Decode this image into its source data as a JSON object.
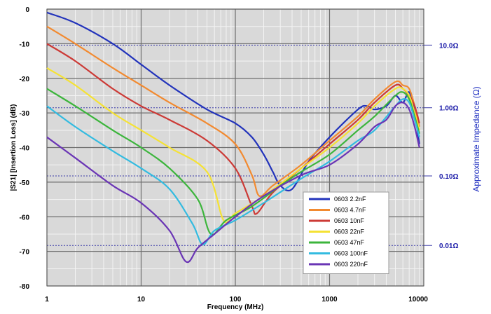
{
  "chart_data": {
    "type": "line",
    "xlabel": "Frequency (MHz)",
    "ylabel": "|S21| [Insertion Loss] (dB)",
    "y2label": "Approximate Impedance (Ω)",
    "x_scale": "log",
    "xlim": [
      1,
      10000
    ],
    "ylim": [
      -80,
      0
    ],
    "x_ticks": [
      {
        "value": 1,
        "label": "1"
      },
      {
        "value": 10,
        "label": "10"
      },
      {
        "value": 100,
        "label": "100"
      },
      {
        "value": 1000,
        "label": "1000"
      },
      {
        "value": 10000,
        "label": "10000"
      }
    ],
    "y_ticks": [
      {
        "value": 0,
        "label": "0"
      },
      {
        "value": -10,
        "label": "-10"
      },
      {
        "value": -20,
        "label": "-20"
      },
      {
        "value": -30,
        "label": "-30"
      },
      {
        "value": -40,
        "label": "-40"
      },
      {
        "value": -50,
        "label": "-50"
      },
      {
        "value": -60,
        "label": "-60"
      },
      {
        "value": -70,
        "label": "-70"
      },
      {
        "value": -80,
        "label": "-80"
      }
    ],
    "y2_ticks": [
      {
        "y": -10.4,
        "label": "10.0Ω"
      },
      {
        "y": -28.5,
        "label": "1.00Ω"
      },
      {
        "y": -48.2,
        "label": "0.10Ω"
      },
      {
        "y": -68.3,
        "label": "0.01Ω"
      }
    ],
    "grid": true,
    "legend_position": "bottom-right",
    "series": [
      {
        "name": "0603 2.2nF",
        "color": "#2233bb",
        "points": [
          [
            1,
            -1
          ],
          [
            2,
            -4
          ],
          [
            5,
            -10
          ],
          [
            10,
            -16
          ],
          [
            20,
            -22
          ],
          [
            50,
            -29
          ],
          [
            100,
            -33
          ],
          [
            150,
            -37
          ],
          [
            200,
            -42
          ],
          [
            250,
            -47
          ],
          [
            300,
            -51
          ],
          [
            400,
            -52
          ],
          [
            600,
            -44
          ],
          [
            1000,
            -37
          ],
          [
            2000,
            -29
          ],
          [
            2500,
            -28
          ],
          [
            3000,
            -29
          ],
          [
            4000,
            -28
          ],
          [
            5000,
            -25
          ],
          [
            6000,
            -27
          ],
          [
            7000,
            -24
          ],
          [
            8000,
            -30
          ],
          [
            9000,
            -39
          ]
        ]
      },
      {
        "name": "0603 4.7nF",
        "color": "#f28a30",
        "points": [
          [
            1,
            -5
          ],
          [
            2,
            -10
          ],
          [
            5,
            -17
          ],
          [
            10,
            -22
          ],
          [
            20,
            -27
          ],
          [
            50,
            -33
          ],
          [
            100,
            -39
          ],
          [
            150,
            -48
          ],
          [
            180,
            -54
          ],
          [
            250,
            -51
          ],
          [
            500,
            -45
          ],
          [
            1000,
            -38
          ],
          [
            2000,
            -31
          ],
          [
            3000,
            -26
          ],
          [
            5000,
            -21
          ],
          [
            6000,
            -22
          ],
          [
            7000,
            -23
          ],
          [
            8000,
            -28
          ],
          [
            9000,
            -34
          ]
        ]
      },
      {
        "name": "0603 10nF",
        "color": "#cc3a36",
        "points": [
          [
            1,
            -10
          ],
          [
            2,
            -15
          ],
          [
            5,
            -23
          ],
          [
            10,
            -28
          ],
          [
            20,
            -32
          ],
          [
            50,
            -38
          ],
          [
            100,
            -46
          ],
          [
            150,
            -57
          ],
          [
            170,
            -59
          ],
          [
            250,
            -53
          ],
          [
            500,
            -46
          ],
          [
            1000,
            -39
          ],
          [
            2000,
            -32
          ],
          [
            3000,
            -27
          ],
          [
            5000,
            -22
          ],
          [
            6000,
            -23
          ],
          [
            7000,
            -25
          ],
          [
            8000,
            -28
          ],
          [
            9000,
            -33
          ]
        ]
      },
      {
        "name": "0603 22nF",
        "color": "#f5e234",
        "points": [
          [
            1,
            -17
          ],
          [
            2,
            -22
          ],
          [
            5,
            -30
          ],
          [
            10,
            -35
          ],
          [
            20,
            -40
          ],
          [
            50,
            -47
          ],
          [
            75,
            -61
          ],
          [
            100,
            -59
          ],
          [
            200,
            -54
          ],
          [
            500,
            -46
          ],
          [
            1000,
            -40
          ],
          [
            2000,
            -33
          ],
          [
            3000,
            -28
          ],
          [
            5000,
            -23
          ],
          [
            6000,
            -23
          ],
          [
            7000,
            -25
          ],
          [
            8000,
            -30
          ],
          [
            9000,
            -35
          ]
        ]
      },
      {
        "name": "0603 47nF",
        "color": "#3cb53c",
        "points": [
          [
            1,
            -23
          ],
          [
            2,
            -28
          ],
          [
            5,
            -35
          ],
          [
            10,
            -40
          ],
          [
            20,
            -46
          ],
          [
            40,
            -55
          ],
          [
            55,
            -65
          ],
          [
            80,
            -61
          ],
          [
            150,
            -57
          ],
          [
            300,
            -51
          ],
          [
            500,
            -47
          ],
          [
            1000,
            -42
          ],
          [
            2000,
            -35
          ],
          [
            3000,
            -31
          ],
          [
            5000,
            -25
          ],
          [
            6000,
            -24
          ],
          [
            7000,
            -26
          ],
          [
            8000,
            -31
          ],
          [
            9000,
            -36
          ]
        ]
      },
      {
        "name": "0603 100nF",
        "color": "#33bbe0",
        "points": [
          [
            1,
            -28
          ],
          [
            2,
            -34
          ],
          [
            5,
            -41
          ],
          [
            10,
            -46
          ],
          [
            20,
            -52
          ],
          [
            35,
            -62
          ],
          [
            45,
            -68
          ],
          [
            60,
            -64
          ],
          [
            100,
            -61
          ],
          [
            200,
            -56
          ],
          [
            500,
            -49
          ],
          [
            1000,
            -44
          ],
          [
            2000,
            -38
          ],
          [
            3000,
            -35
          ],
          [
            5000,
            -28
          ],
          [
            6000,
            -26
          ],
          [
            7000,
            -27
          ],
          [
            8000,
            -32
          ],
          [
            9000,
            -37
          ]
        ]
      },
      {
        "name": "0603 220nF",
        "color": "#6a35b5",
        "points": [
          [
            1,
            -37
          ],
          [
            2,
            -43
          ],
          [
            5,
            -51
          ],
          [
            10,
            -56
          ],
          [
            20,
            -64
          ],
          [
            30,
            -73
          ],
          [
            40,
            -69
          ],
          [
            60,
            -65
          ],
          [
            100,
            -60
          ],
          [
            200,
            -54
          ],
          [
            500,
            -48
          ],
          [
            1000,
            -45
          ],
          [
            2000,
            -39
          ],
          [
            3000,
            -34
          ],
          [
            4000,
            -32
          ],
          [
            5000,
            -28
          ],
          [
            6000,
            -27
          ],
          [
            7000,
            -29
          ],
          [
            8000,
            -34
          ],
          [
            9000,
            -40
          ]
        ]
      }
    ]
  }
}
